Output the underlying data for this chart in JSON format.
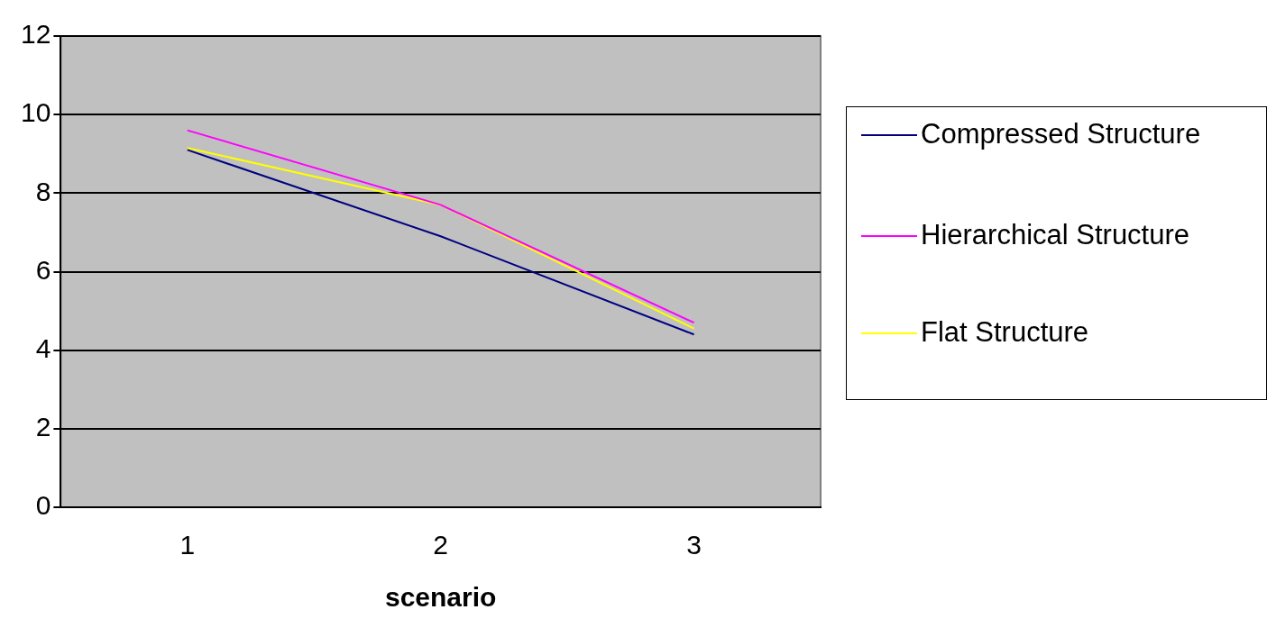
{
  "chart_data": {
    "type": "line",
    "xlabel": "scenario",
    "categories": [
      "1",
      "2",
      "3"
    ],
    "series": [
      {
        "name": "Compressed Structure",
        "color": "#000080",
        "values": [
          9.1,
          6.9,
          4.4
        ]
      },
      {
        "name": "Hierarchical Structure",
        "color": "#ff00ff",
        "values": [
          9.6,
          7.7,
          4.7
        ]
      },
      {
        "name": "Flat Structure",
        "color": "#ffff00",
        "values": [
          9.15,
          7.7,
          4.55
        ]
      }
    ],
    "ylim": [
      0,
      12
    ],
    "yticks": [
      0,
      2,
      4,
      6,
      8,
      10,
      12
    ],
    "grid": "y",
    "legend": "right",
    "marker": "none",
    "line_style": "solid"
  }
}
